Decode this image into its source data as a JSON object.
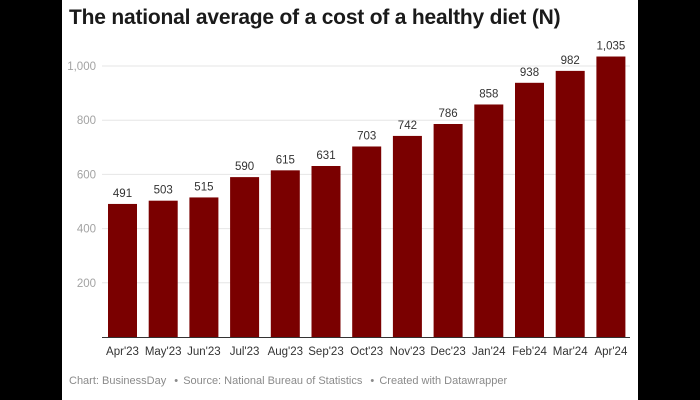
{
  "chart_data": {
    "type": "bar",
    "title": "The national average of a cost of a healthy diet (N)",
    "xlabel": "",
    "ylabel": "",
    "ylim": [
      0,
      1100
    ],
    "yticks": [
      200,
      400,
      600,
      800,
      1000
    ],
    "ytick_labels": [
      "200",
      "400",
      "600",
      "800",
      "1,000"
    ],
    "grid": true,
    "legend": "none",
    "bar_color": "#7a0000",
    "categories": [
      "Apr'23",
      "May'23",
      "Jun'23",
      "Jul'23",
      "Aug'23",
      "Sep'23",
      "Oct'23",
      "Nov'23",
      "Dec'23",
      "Jan'24",
      "Feb'24",
      "Mar'24",
      "Apr'24"
    ],
    "values": [
      491,
      503,
      515,
      590,
      615,
      631,
      703,
      742,
      786,
      858,
      938,
      982,
      1035
    ],
    "value_labels": [
      "491",
      "503",
      "515",
      "590",
      "615",
      "631",
      "703",
      "742",
      "786",
      "858",
      "938",
      "982",
      "1,035"
    ]
  },
  "footer": {
    "chart_credit": "Chart: BusinessDay",
    "source": "Source: National Bureau of Statistics",
    "created_with": "Created with Datawrapper",
    "separator": "•"
  }
}
